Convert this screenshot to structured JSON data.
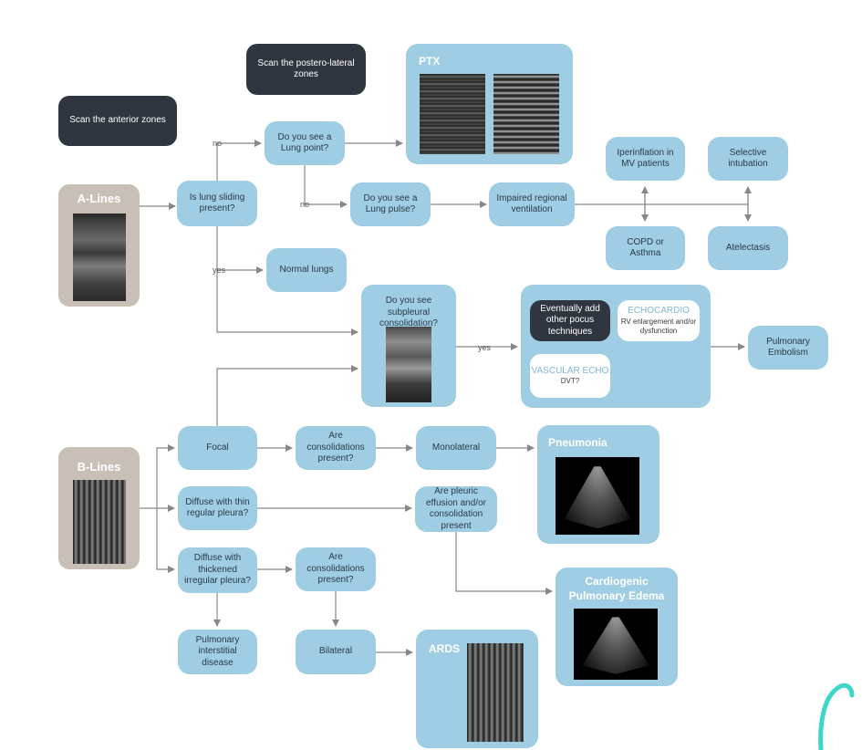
{
  "colors": {
    "box_blue": "#9fcde4",
    "box_dark": "#2f3640",
    "box_grey": "#c8c0b6",
    "arrow": "#888888",
    "accent_teal": "#3ed6c8"
  },
  "headers": {
    "scan_anterior": "Scan the anterior zones",
    "scan_postero_lateral": "Scan the postero-lateral zones"
  },
  "panels": {
    "a_lines": "A-Lines",
    "b_lines": "B-Lines",
    "ptx": "PTX",
    "pneumonia": "Pneumonia",
    "cardiogenic_edema": "Cardiogenic Pulmonary Edema",
    "ards": "ARDS"
  },
  "nodes": {
    "lung_sliding": "Is lung sliding present?",
    "lung_point": "Do you see a Lung point?",
    "lung_pulse": "Do you see a Lung pulse?",
    "impaired_ventilation": "Impaired regional ventilation",
    "iperinflation": "Iperinflation in MV patients",
    "selective_intubation": "Selective intubation",
    "copd_asthma": "COPD or Asthma",
    "atelectasis": "Atelectasis",
    "normal_lungs": "Normal lungs",
    "subpleural": "Do you see subpleural consolidation?",
    "pulmonary_embolism": "Pulmonary Embolism",
    "focal": "Focal",
    "diffuse_thin": "Diffuse with thin regular pleura?",
    "diffuse_thick": "Diffuse with thickened irregular pleura?",
    "consolidations_1": "Are consolidations present?",
    "consolidations_2": "Are consolidations present?",
    "monolateral": "Monolateral",
    "effusion": "Are pleuric effusion and/or consolidation present",
    "interstitial": "Pulmonary interstitial disease",
    "bilateral": "Bilateral"
  },
  "pocus": {
    "add_other": "Eventually add other pocus techniques",
    "echocardio_title": "ECHOCARDIO",
    "echocardio_text": "RV enlargement and/or dysfunction",
    "vascular_title": "VASCULAR ECHO",
    "vascular_text": "DVT?"
  },
  "edge_labels": {
    "no_top": "no",
    "no_mid": "no",
    "yes_normal": "yes",
    "yes_subpleural": "yes"
  }
}
